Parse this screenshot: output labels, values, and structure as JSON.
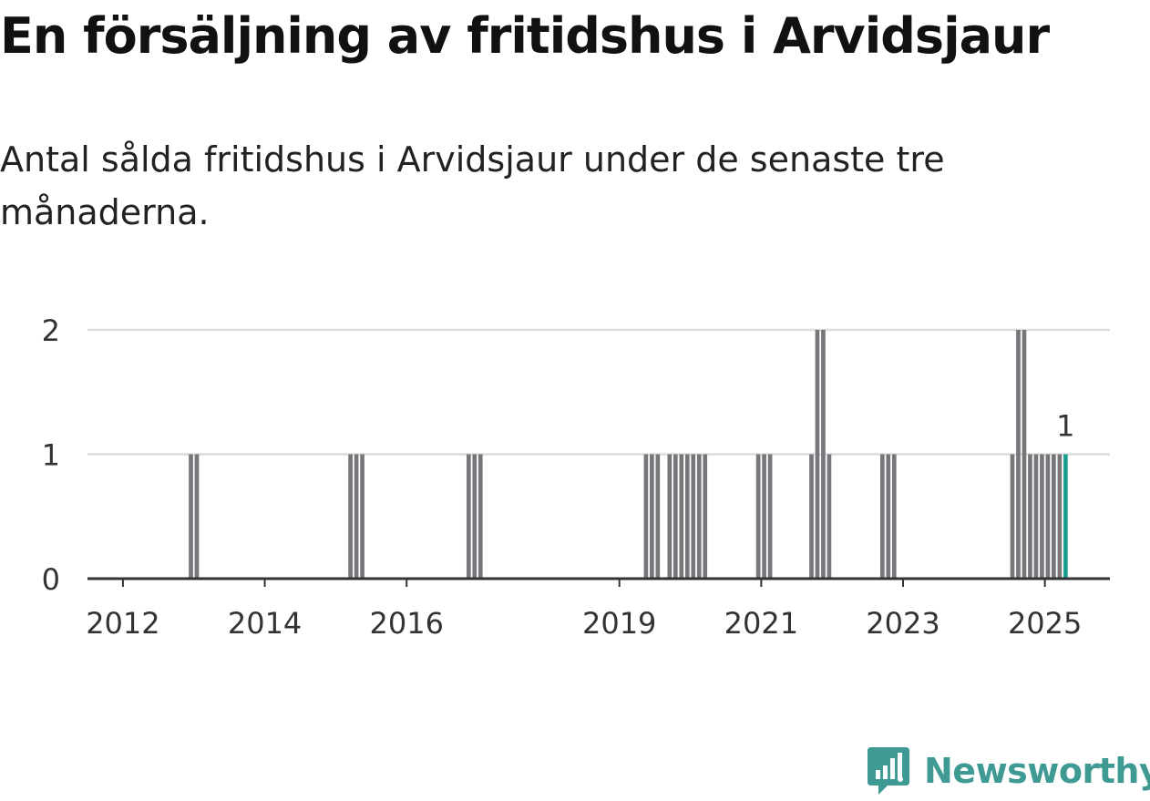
{
  "header": {
    "title": "En försäljning av fritidshus i Arvidsjaur",
    "subtitle": "Antal sålda fritidshus i Arvidsjaur under de senaste tre månaderna."
  },
  "brand": {
    "name": "Newsworthy",
    "color": "#3f9a94"
  },
  "colors": {
    "bar": "#76767b",
    "highlight": "#1a9e94",
    "grid": "#dcdcdc",
    "axis": "#333333"
  },
  "chart_data": {
    "type": "bar",
    "x_ticks": [
      "2012",
      "2014",
      "2016",
      "2019",
      "2021",
      "2023",
      "2025"
    ],
    "y_ticks": [
      0,
      1,
      2
    ],
    "ylim": [
      0,
      2
    ],
    "grid": true,
    "series": [
      {
        "values": [
          {
            "x": "2012-12",
            "y": 1
          },
          {
            "x": "2013-01",
            "y": 1
          },
          {
            "x": "2015-03",
            "y": 1
          },
          {
            "x": "2015-04",
            "y": 1
          },
          {
            "x": "2015-05",
            "y": 1
          },
          {
            "x": "2016-11",
            "y": 1
          },
          {
            "x": "2016-12",
            "y": 1
          },
          {
            "x": "2017-01",
            "y": 1
          },
          {
            "x": "2019-05",
            "y": 1
          },
          {
            "x": "2019-06",
            "y": 1
          },
          {
            "x": "2019-07",
            "y": 1
          },
          {
            "x": "2019-09",
            "y": 1
          },
          {
            "x": "2019-10",
            "y": 1
          },
          {
            "x": "2019-11",
            "y": 1
          },
          {
            "x": "2019-12",
            "y": 1
          },
          {
            "x": "2020-01",
            "y": 1
          },
          {
            "x": "2020-02",
            "y": 1
          },
          {
            "x": "2020-03",
            "y": 1
          },
          {
            "x": "2020-12",
            "y": 1
          },
          {
            "x": "2021-01",
            "y": 1
          },
          {
            "x": "2021-02",
            "y": 1
          },
          {
            "x": "2021-09",
            "y": 1
          },
          {
            "x": "2021-10",
            "y": 2
          },
          {
            "x": "2021-11",
            "y": 2
          },
          {
            "x": "2021-12",
            "y": 1
          },
          {
            "x": "2022-09",
            "y": 1
          },
          {
            "x": "2022-10",
            "y": 1
          },
          {
            "x": "2022-11",
            "y": 1
          },
          {
            "x": "2024-07",
            "y": 1
          },
          {
            "x": "2024-08",
            "y": 2
          },
          {
            "x": "2024-09",
            "y": 2
          },
          {
            "x": "2024-10",
            "y": 1
          },
          {
            "x": "2024-11",
            "y": 1
          },
          {
            "x": "2024-12",
            "y": 1
          },
          {
            "x": "2025-01",
            "y": 1
          },
          {
            "x": "2025-02",
            "y": 1
          },
          {
            "x": "2025-03",
            "y": 1
          },
          {
            "x": "2025-04",
            "y": 1
          }
        ]
      }
    ],
    "highlight": {
      "x": "2025-04",
      "y": 1,
      "label": "1"
    }
  }
}
